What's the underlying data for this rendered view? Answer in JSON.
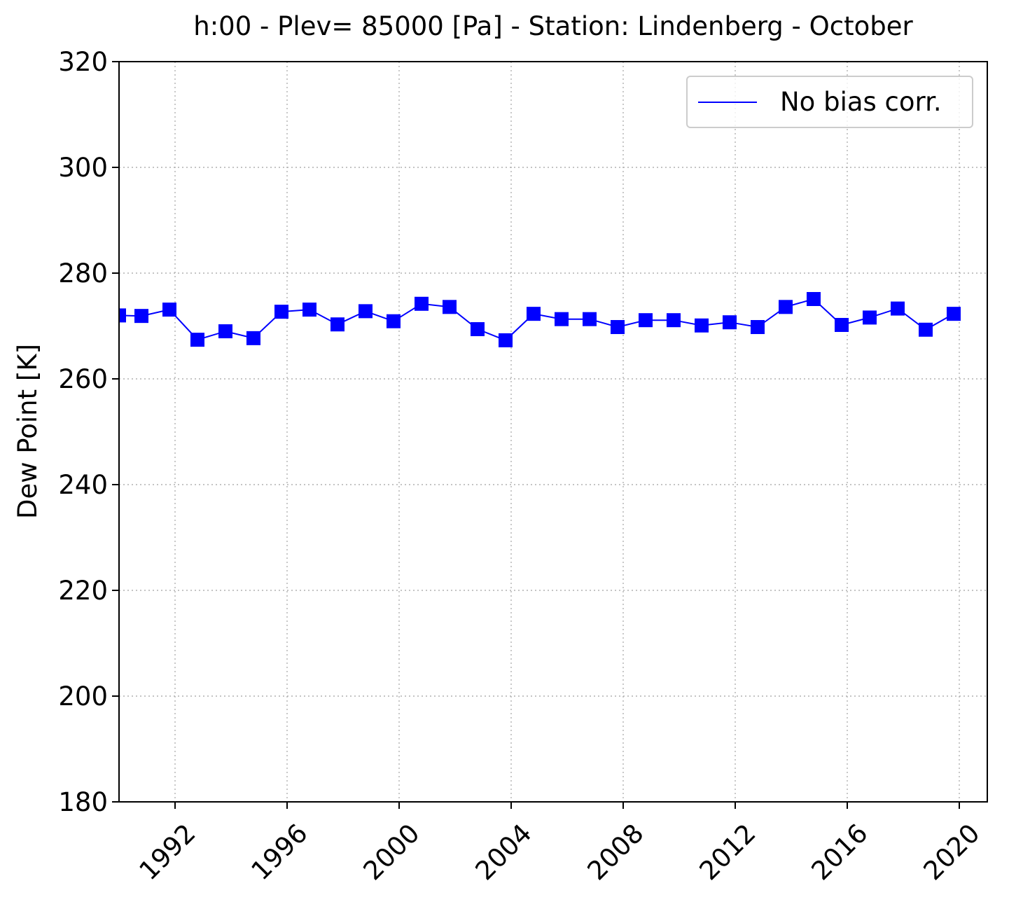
{
  "chart_data": {
    "type": "line",
    "title": "h:00 - Plev= 85000 [Pa] - Station: Lindenberg - October",
    "xlabel": "",
    "ylabel": "Dew Point [K]",
    "xlim": [
      1990.0,
      2021.0
    ],
    "ylim": [
      180,
      320
    ],
    "x_ticks": [
      "1992",
      "1996",
      "2000",
      "2004",
      "2008",
      "2012",
      "2016",
      "2020"
    ],
    "y_ticks": [
      "180",
      "200",
      "220",
      "240",
      "260",
      "280",
      "300",
      "320"
    ],
    "grid": true,
    "legend_position": "top-right",
    "series": [
      {
        "name": "No bias corr.",
        "color": "#0000ff",
        "marker": "square",
        "x": [
          1990.0,
          1990.8,
          1991.8,
          1992.8,
          1993.8,
          1994.8,
          1995.8,
          1996.8,
          1997.8,
          1998.8,
          1999.8,
          2000.8,
          2001.8,
          2002.8,
          2003.8,
          2004.8,
          2005.8,
          2006.8,
          2007.8,
          2008.8,
          2009.8,
          2010.8,
          2011.8,
          2012.8,
          2013.8,
          2014.8,
          2015.8,
          2016.8,
          2017.8,
          2018.8,
          2019.8
        ],
        "y": [
          272.0,
          271.9,
          273.1,
          267.4,
          269.0,
          267.7,
          272.7,
          273.1,
          270.3,
          272.8,
          270.9,
          274.2,
          273.6,
          269.4,
          267.3,
          272.3,
          271.3,
          271.3,
          269.8,
          271.1,
          271.1,
          270.1,
          270.7,
          269.8,
          273.6,
          275.1,
          270.2,
          271.6,
          273.3,
          269.3,
          272.3
        ]
      }
    ]
  }
}
